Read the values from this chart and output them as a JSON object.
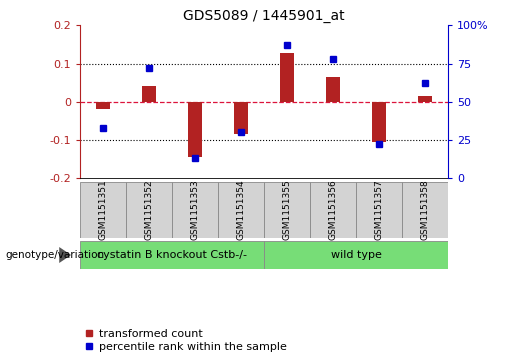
{
  "title": "GDS5089 / 1445901_at",
  "samples": [
    "GSM1151351",
    "GSM1151352",
    "GSM1151353",
    "GSM1151354",
    "GSM1151355",
    "GSM1151356",
    "GSM1151357",
    "GSM1151358"
  ],
  "transformed_count": [
    -0.02,
    0.04,
    -0.145,
    -0.085,
    0.128,
    0.065,
    -0.105,
    0.015
  ],
  "percentile_rank": [
    33,
    72,
    13,
    30,
    87,
    78,
    22,
    62
  ],
  "ylim_left": [
    -0.2,
    0.2
  ],
  "ylim_right": [
    0,
    100
  ],
  "yticks_left": [
    -0.2,
    -0.1,
    0.0,
    0.1,
    0.2
  ],
  "ytick_labels_left": [
    "-0.2",
    "-0.1",
    "0",
    "0.1",
    "0.2"
  ],
  "yticks_right": [
    0,
    25,
    50,
    75,
    100
  ],
  "ytick_labels_right": [
    "0",
    "25",
    "50",
    "75",
    "100%"
  ],
  "bar_color": "#b22222",
  "dot_color": "#0000cd",
  "genotype_groups": [
    {
      "label": "cystatin B knockout Cstb-/-",
      "start": 0,
      "end": 4,
      "color": "#77dd77"
    },
    {
      "label": "wild type",
      "start": 4,
      "end": 8,
      "color": "#77dd77"
    }
  ],
  "genotype_label": "genotype/variation",
  "legend_items": [
    {
      "label": "transformed count",
      "color": "#b22222"
    },
    {
      "label": "percentile rank within the sample",
      "color": "#0000cd"
    }
  ],
  "hline_color": "#dc143c",
  "dot_hline_color": "#dc143c",
  "grid_color": "#000000",
  "title_fontsize": 10,
  "tick_fontsize": 8,
  "sample_fontsize": 6.5,
  "geno_fontsize": 8,
  "legend_fontsize": 8,
  "bar_width": 0.3
}
